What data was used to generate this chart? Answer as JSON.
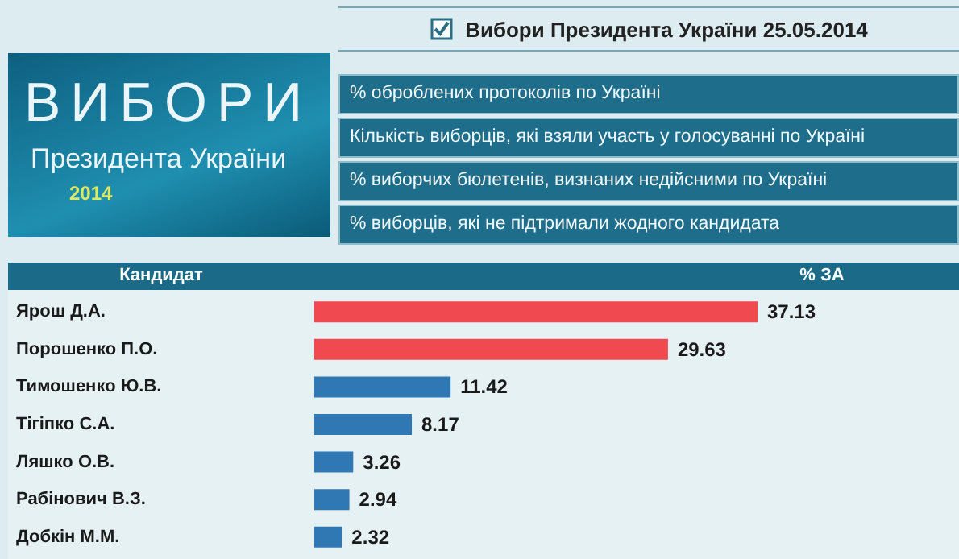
{
  "chart_data": {
    "type": "bar",
    "orientation": "horizontal",
    "title": "Вибори Президента України 25.05.2014",
    "annotations": [
      "ВИБОРИ",
      "Президента України",
      "2014",
      "% оброблених протоколів по Україні",
      "Кількість виборців, які взяли участь у голосуванні по Україні",
      "% виборчих бюлетенів, визнаних недійсними по Україні",
      "% виборців, які не підтримали жодного кандидата",
      "Кандидат",
      "% ЗА"
    ],
    "categories": [
      "Ярош Д.А.",
      "Порошенко П.О.",
      "Тимошенко Ю.В.",
      "Тігіпко С.А.",
      "Ляшко О.В.",
      "Рабінович В.З.",
      "Добкін М.М."
    ],
    "values": [
      37.13,
      29.63,
      11.42,
      8.17,
      3.26,
      2.94,
      2.32
    ],
    "colors": [
      "#f04a50",
      "#f04a50",
      "#2f78b4",
      "#2f78b4",
      "#2f78b4",
      "#2f78b4",
      "#2f78b4"
    ],
    "data_labels": true
  }
}
